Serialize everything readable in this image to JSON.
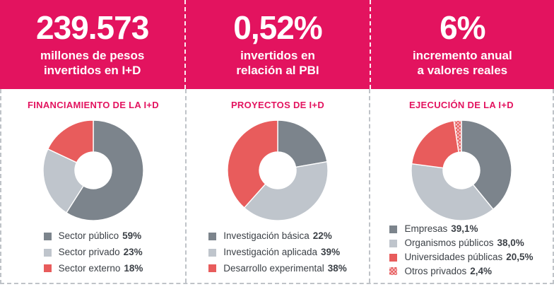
{
  "colors": {
    "pink": "#e3135f",
    "dark_gray": "#7c848c",
    "light_gray": "#bfc5cc",
    "red": "#e85c5c",
    "pattern_base": "#f4bfc2",
    "dash_line": "#bfc3c8",
    "legend_text": "#3c4147",
    "header_text": "#ffffff"
  },
  "panels": [
    {
      "stat_value": "239.573",
      "caption_line1": "millones de pesos",
      "caption_line2": "invertidos en I+D",
      "section_title": "FINANCIAMIENTO DE LA I+D"
    },
    {
      "stat_value": "0,52%",
      "caption_line1": "invertidos en",
      "caption_line2": "relación al PBI",
      "section_title": "PROYECTOS DE I+D"
    },
    {
      "stat_value": "6%",
      "caption_line1": "incremento anual",
      "caption_line2": "a valores reales",
      "section_title": "EJECUCIÓN DE LA I+D"
    }
  ],
  "chart_data": [
    {
      "type": "donut",
      "title": "FINANCIAMIENTO DE LA I+D",
      "start_angle_deg": 0,
      "direction": "clockwise",
      "legend_position": "bottom",
      "items": [
        {
          "label": "Sector público",
          "value": 59,
          "display": "59%",
          "color": "dark_gray"
        },
        {
          "label": "Sector privado",
          "value": 23,
          "display": "23%",
          "color": "light_gray"
        },
        {
          "label": "Sector externo",
          "value": 18,
          "display": "18%",
          "color": "red"
        }
      ]
    },
    {
      "type": "donut",
      "title": "PROYECTOS DE I+D",
      "start_angle_deg": 0,
      "direction": "clockwise",
      "legend_position": "bottom",
      "items": [
        {
          "label": "Investigación básica",
          "value": 22,
          "display": "22%",
          "color": "dark_gray"
        },
        {
          "label": "Investigación aplicada",
          "value": 39,
          "display": "39%",
          "color": "light_gray"
        },
        {
          "label": "Desarrollo experimental",
          "value": 38,
          "display": "38%",
          "color": "red"
        }
      ]
    },
    {
      "type": "donut",
      "title": "EJECUCIÓN DE LA I+D",
      "start_angle_deg": 0,
      "direction": "clockwise",
      "legend_position": "bottom",
      "items": [
        {
          "label": "Empresas",
          "value": 39.1,
          "display": "39,1%",
          "color": "dark_gray"
        },
        {
          "label": "Organismos públicos",
          "value": 38.0,
          "display": "38,0%",
          "color": "light_gray"
        },
        {
          "label": "Universidades públicas",
          "value": 20.5,
          "display": "20,5%",
          "color": "red"
        },
        {
          "label": "Otros privados",
          "value": 2.4,
          "display": "2,4%",
          "color": "pattern_red_dots"
        }
      ]
    }
  ]
}
